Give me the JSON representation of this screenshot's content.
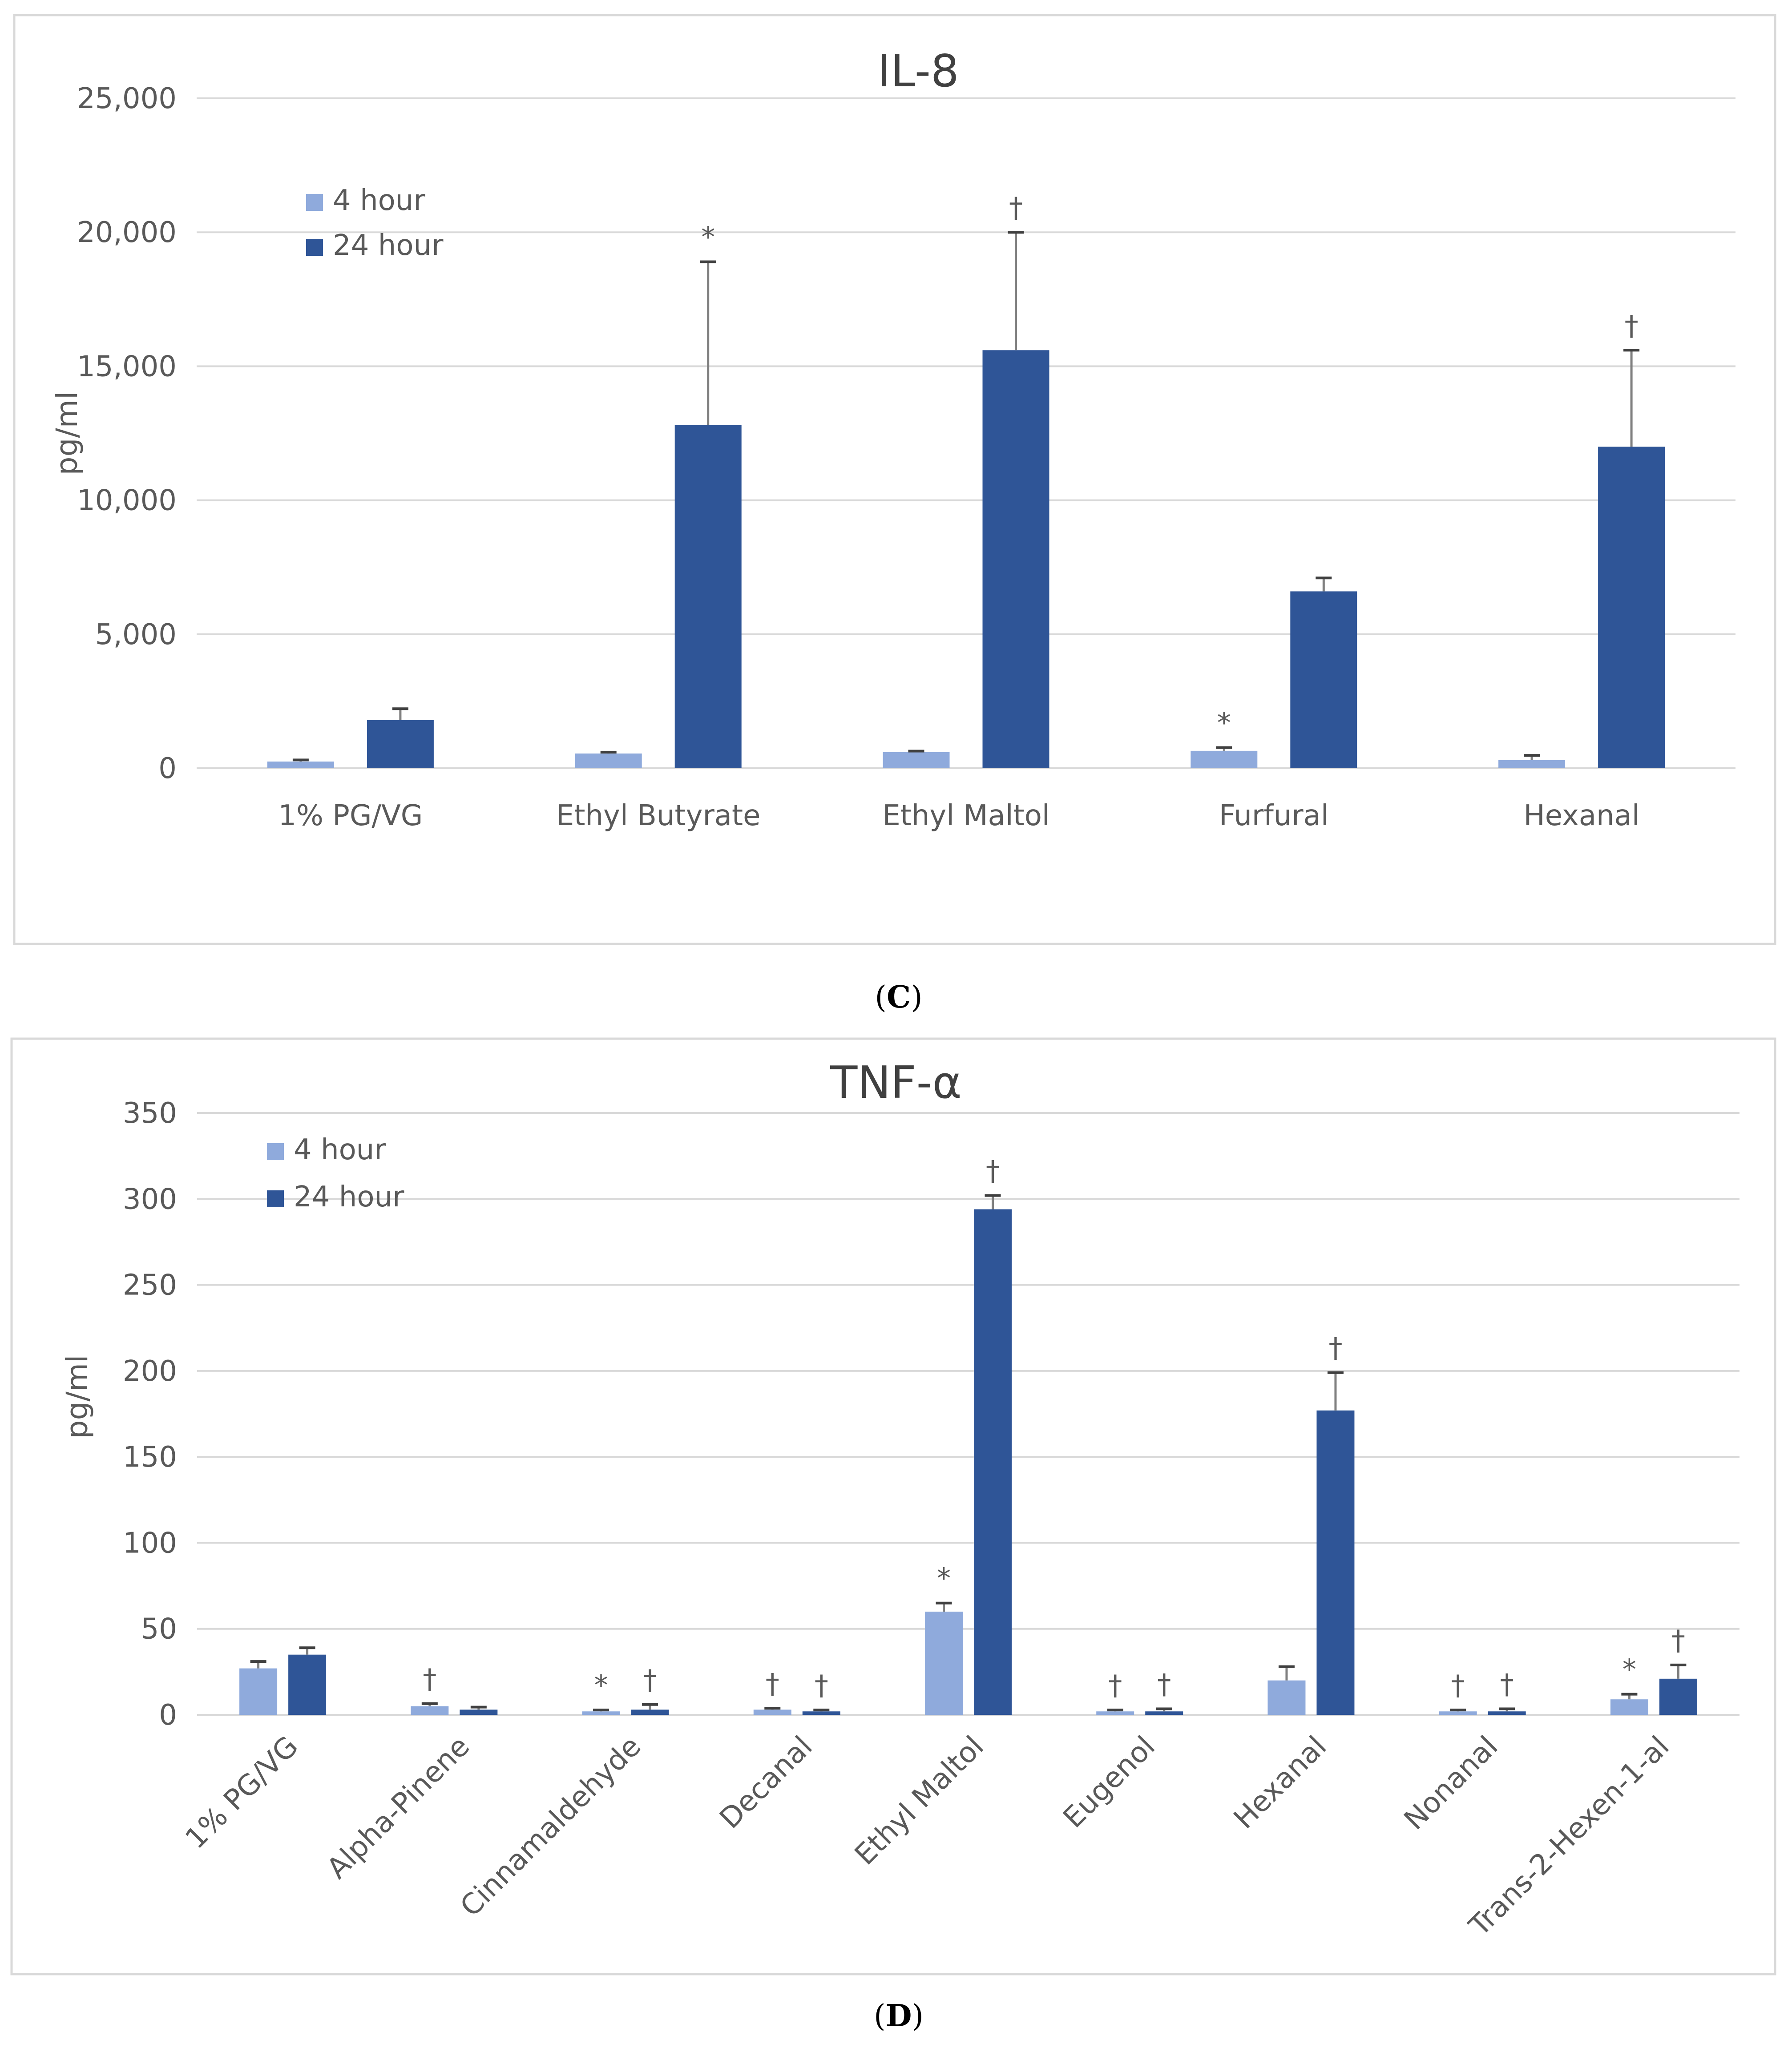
{
  "chart_data": [
    {
      "type": "bar",
      "title": "IL-8",
      "panel_label": "C",
      "ylabel": "pg/ml",
      "xlabel": "",
      "ylim": [
        0,
        25000
      ],
      "yticks": [
        0,
        5000,
        10000,
        15000,
        20000,
        25000
      ],
      "ytick_labels": [
        "0",
        "5,000",
        "10,000",
        "15,000",
        "20,000",
        "25,000"
      ],
      "grid": true,
      "legend_position": "top-left",
      "categories": [
        "1% PG/VG",
        "Ethyl Butyrate",
        "Ethyl Maltol",
        "Furfural",
        "Hexanal"
      ],
      "series": [
        {
          "name": "4 hour",
          "color": "#8faadc",
          "values": [
            250,
            550,
            600,
            650,
            300
          ],
          "errors": [
            60,
            50,
            40,
            120,
            180
          ],
          "markers": [
            "",
            "",
            "",
            "*",
            ""
          ]
        },
        {
          "name": "24 hour",
          "color": "#2f5597",
          "values": [
            1800,
            12800,
            15600,
            6600,
            12000
          ],
          "errors": [
            420,
            6100,
            4400,
            500,
            3600
          ],
          "markers": [
            "",
            "*",
            "†",
            "",
            "†"
          ]
        }
      ]
    },
    {
      "type": "bar",
      "title": "TNF-α",
      "panel_label": "D",
      "ylabel": "pg/ml",
      "xlabel": "",
      "ylim": [
        0,
        350
      ],
      "yticks": [
        0,
        50,
        100,
        150,
        200,
        250,
        300,
        350
      ],
      "ytick_labels": [
        "0",
        "50",
        "100",
        "150",
        "200",
        "250",
        "300",
        "350"
      ],
      "grid": true,
      "legend_position": "top-left",
      "categories": [
        "1% PG/VG",
        "Alpha-Pinene",
        "Cinnamaldehyde",
        "Decanal",
        "Ethyl Maltol",
        "Eugenol",
        "Hexanal",
        "Nonanal",
        "Trans-2-Hexen-1-al"
      ],
      "series": [
        {
          "name": "4 hour",
          "color": "#8faadc",
          "values": [
            27,
            5,
            2,
            3,
            60,
            2,
            20,
            2,
            9
          ],
          "errors": [
            4,
            1.5,
            0.8,
            0.8,
            5,
            0.8,
            8,
            0.8,
            3
          ],
          "markers": [
            "",
            "†",
            "*",
            "†",
            "*",
            "†",
            "",
            "†",
            "*"
          ]
        },
        {
          "name": "24 hour",
          "color": "#2f5597",
          "values": [
            35,
            3,
            3,
            2,
            294,
            2,
            177,
            2,
            21
          ],
          "errors": [
            4,
            1.5,
            3,
            0.8,
            8,
            1.5,
            22,
            1.5,
            8
          ],
          "markers": [
            "",
            "",
            "†",
            "†",
            "†",
            "†",
            "†",
            "†",
            "†"
          ]
        }
      ]
    }
  ]
}
